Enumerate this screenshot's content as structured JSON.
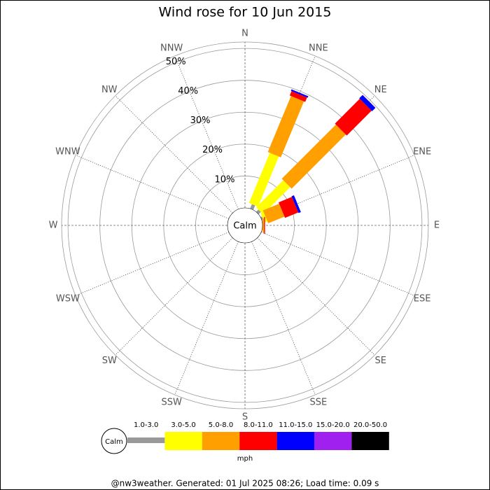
{
  "chart_data": {
    "type": "windrose",
    "title": "Wind rose for 10 Jun 2015",
    "categories": [
      "N",
      "NNE",
      "NE",
      "ENE",
      "E",
      "ESE",
      "SE",
      "SSE",
      "S",
      "SSW",
      "SW",
      "WSW",
      "W",
      "WNW",
      "NW",
      "NNW"
    ],
    "calm_label": "Calm",
    "unit_label": "mph",
    "rlim": [
      0,
      52
    ],
    "rticks": [
      {
        "value": 10,
        "label": "10%"
      },
      {
        "value": 20,
        "label": "20%"
      },
      {
        "value": 30,
        "label": "30%"
      },
      {
        "value": 40,
        "label": "40%"
      },
      {
        "value": 50,
        "label": "50%"
      }
    ],
    "series": [
      {
        "name": "1.0-3.0",
        "color": "#999999",
        "values": [
          0,
          1.5,
          1,
          0.5,
          0,
          0,
          0,
          0,
          0,
          0,
          0,
          0,
          0,
          0,
          0,
          0
        ]
      },
      {
        "name": "3.0-5.0",
        "color": "#ffff00",
        "values": [
          0,
          17,
          12,
          1,
          0,
          0,
          0,
          0,
          0,
          0,
          0,
          0,
          0,
          0,
          0,
          0
        ]
      },
      {
        "name": "5.0-8.0",
        "color": "#ffa000",
        "values": [
          0,
          19,
          24,
          5.5,
          0.5,
          0,
          0,
          0,
          0,
          0,
          0,
          0,
          0,
          0,
          0,
          0
        ]
      },
      {
        "name": "8.0-11.0",
        "color": "#ff0000",
        "values": [
          0,
          1.5,
          11,
          4.5,
          0.3,
          0,
          0,
          0,
          0,
          0,
          0,
          0,
          0,
          0,
          0,
          0
        ]
      },
      {
        "name": "11.0-15.0",
        "color": "#0000ff",
        "values": [
          0,
          0.5,
          1.5,
          0.8,
          0,
          0,
          0,
          0,
          0,
          0,
          0,
          0,
          0,
          0,
          0,
          0
        ]
      },
      {
        "name": "15.0-20.0",
        "color": "#a020f0",
        "values": [
          0,
          0,
          0,
          0,
          0,
          0,
          0,
          0,
          0,
          0,
          0,
          0,
          0,
          0,
          0,
          0
        ]
      },
      {
        "name": "20.0-50.0",
        "color": "#000000",
        "values": [
          0,
          0,
          0,
          0,
          0,
          0,
          0,
          0,
          0,
          0,
          0,
          0,
          0,
          0,
          0,
          0
        ]
      }
    ],
    "footer": "@nw3weather.  Generated: 01 Jul 2025 08:26; Load time: 0.09 s"
  }
}
